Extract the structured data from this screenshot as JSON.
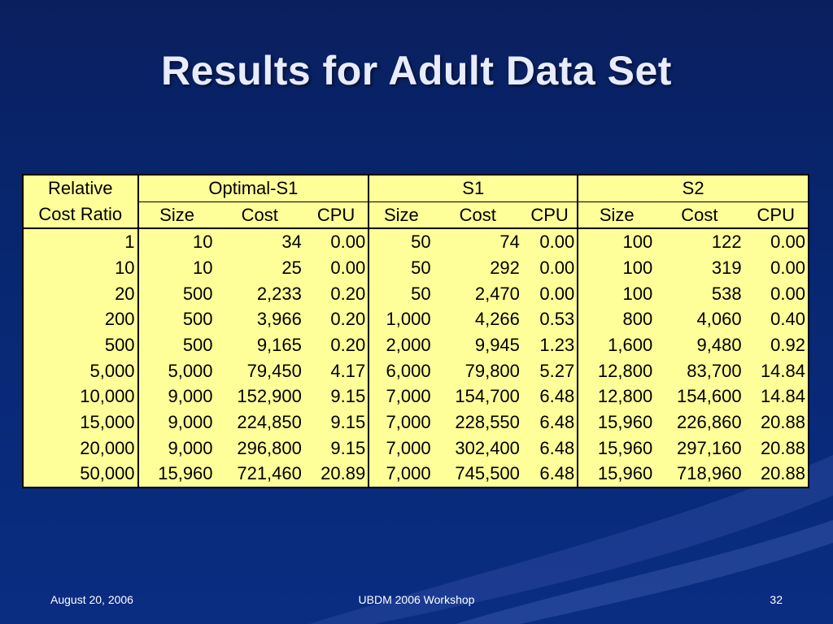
{
  "slide": {
    "title": "Results for Adult Data Set"
  },
  "table": {
    "group_headers": [
      "Relative",
      "Optimal-S1",
      "S1",
      "S2"
    ],
    "sub_headers": [
      "Cost Ratio",
      "Size",
      "Cost",
      "CPU",
      "Size",
      "Cost",
      "CPU",
      "Size",
      "Cost",
      "CPU"
    ],
    "rows": [
      [
        "1",
        "10",
        "34",
        "0.00",
        "50",
        "74",
        "0.00",
        "100",
        "122",
        "0.00"
      ],
      [
        "10",
        "10",
        "25",
        "0.00",
        "50",
        "292",
        "0.00",
        "100",
        "319",
        "0.00"
      ],
      [
        "20",
        "500",
        "2,233",
        "0.20",
        "50",
        "2,470",
        "0.00",
        "100",
        "538",
        "0.00"
      ],
      [
        "200",
        "500",
        "3,966",
        "0.20",
        "1,000",
        "4,266",
        "0.53",
        "800",
        "4,060",
        "0.40"
      ],
      [
        "500",
        "500",
        "9,165",
        "0.20",
        "2,000",
        "9,945",
        "1.23",
        "1,600",
        "9,480",
        "0.92"
      ],
      [
        "5,000",
        "5,000",
        "79,450",
        "4.17",
        "6,000",
        "79,800",
        "5.27",
        "12,800",
        "83,700",
        "14.84"
      ],
      [
        "10,000",
        "9,000",
        "152,900",
        "9.15",
        "7,000",
        "154,700",
        "6.48",
        "12,800",
        "154,600",
        "14.84"
      ],
      [
        "15,000",
        "9,000",
        "224,850",
        "9.15",
        "7,000",
        "228,550",
        "6.48",
        "15,960",
        "226,860",
        "20.88"
      ],
      [
        "20,000",
        "9,000",
        "296,800",
        "9.15",
        "7,000",
        "302,400",
        "6.48",
        "15,960",
        "297,160",
        "20.88"
      ],
      [
        "50,000",
        "15,960",
        "721,460",
        "20.89",
        "7,000",
        "745,500",
        "6.48",
        "15,960",
        "718,960",
        "20.88"
      ]
    ]
  },
  "footer": {
    "date": "August 20, 2006",
    "event": "UBDM 2006 Workshop",
    "page": "32"
  }
}
